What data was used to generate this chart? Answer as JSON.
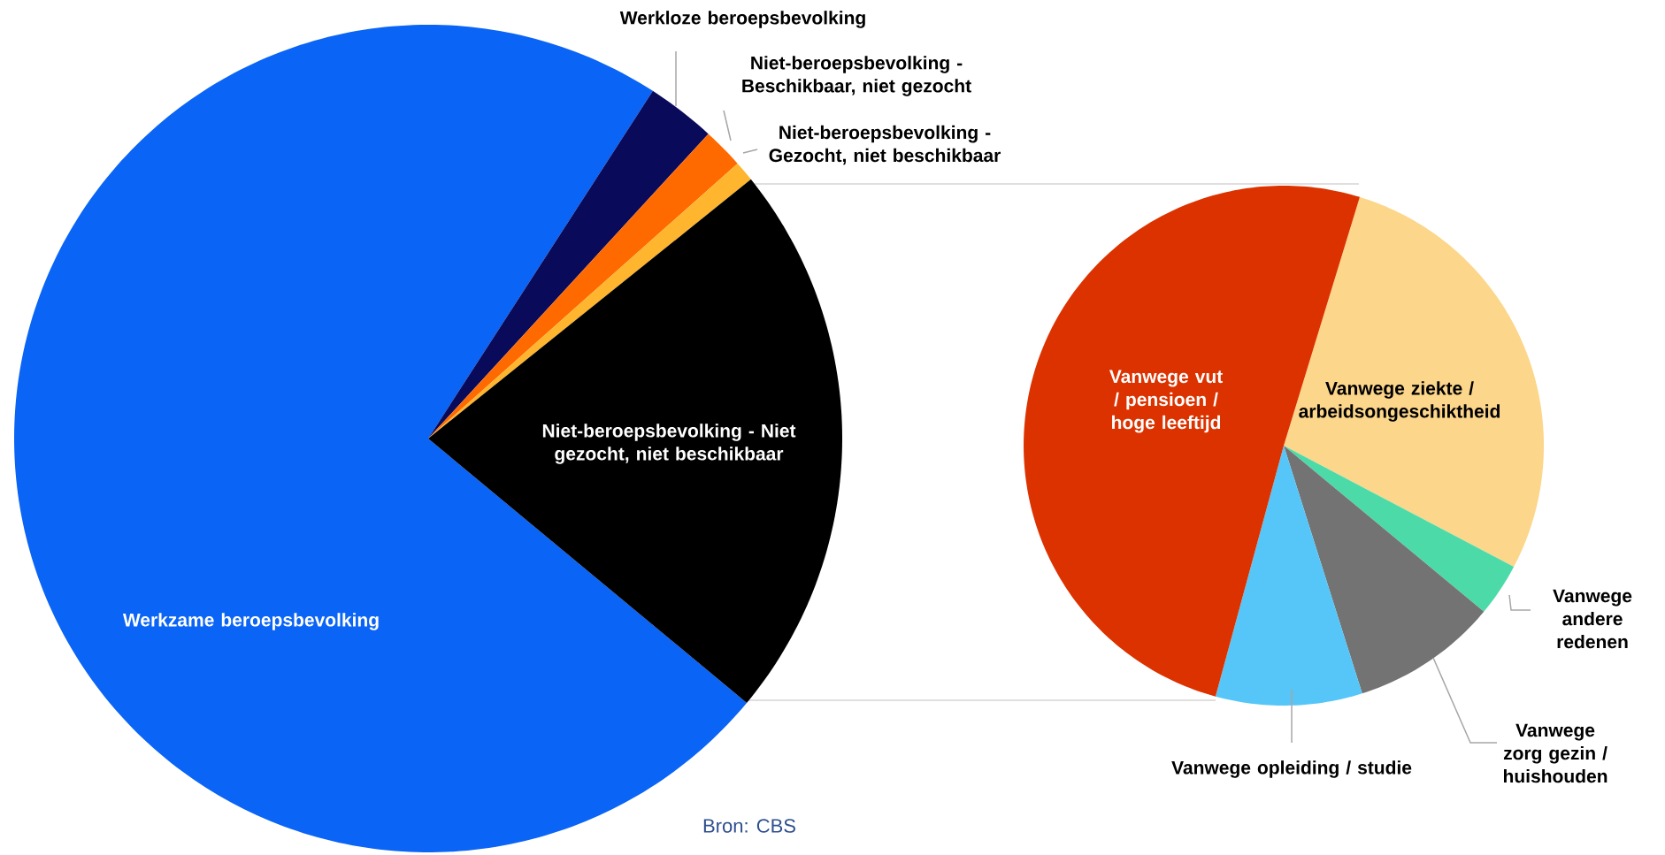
{
  "chart_data": [
    {
      "type": "pie",
      "categories": [
        "Werkzame beroepsbevolking",
        "Werkloze beroepsbevolking",
        "Niet-beroepsbevolking - Beschikbaar, niet gezocht",
        "Niet-beroepsbevolking - Gezocht, niet beschikbaar",
        "Niet-beroepsbevolking - Niet gezocht, niet beschikbaar"
      ],
      "values": [
        73.1,
        2.7,
        1.6,
        0.8,
        21.8
      ],
      "colors": [
        "#0a64f5",
        "#0a0a5a",
        "#ff6a00",
        "#ffb52e",
        "#000000"
      ],
      "annotations": [
        "Bron: CBS"
      ]
    },
    {
      "type": "pie",
      "categories": [
        "Vanwege ziekte / arbeidsongeschiktheid",
        "Vanwege andere redenen",
        "Vanwege zorg gezin / huishouden",
        "Vanwege opleiding / studie",
        "Vanwege vut / pensioen / hoge leeftijd"
      ],
      "values": [
        28.0,
        3.3,
        9.1,
        9.1,
        50.5
      ],
      "colors": [
        "#fcd68a",
        "#4cdba8",
        "#737373",
        "#55c6f7",
        "#dc3200"
      ]
    }
  ]
}
